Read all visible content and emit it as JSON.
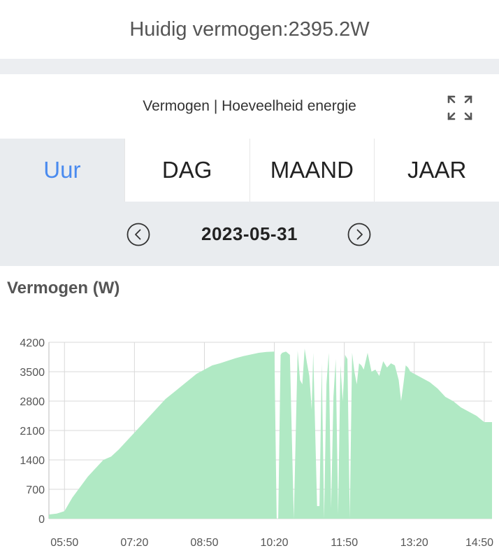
{
  "header": {
    "title": "Huidig vermogen:2395.2W"
  },
  "chart_header": {
    "subtitle": "Vermogen | Hoeveelheid energie",
    "expand_icon": "expand-icon"
  },
  "tabs": [
    {
      "label": "Uur",
      "active": true
    },
    {
      "label": "DAG",
      "active": false
    },
    {
      "label": "MAAND",
      "active": false
    },
    {
      "label": "JAAR",
      "active": false
    }
  ],
  "date_nav": {
    "date": "2023-05-31",
    "prev_icon": "chevron-left-icon",
    "next_icon": "chevron-right-icon"
  },
  "colors": {
    "accent": "#4a8bef",
    "area_fill": "#b0e9c4",
    "grid": "#d9d9d9"
  },
  "chart_data": {
    "type": "area",
    "ylabel": "Vermogen (W)",
    "ylim": [
      0,
      4200
    ],
    "y_ticks": [
      "0",
      "700",
      "1400",
      "2100",
      "2800",
      "3500",
      "4200"
    ],
    "x_ticks": [
      "05:50",
      "07:20",
      "08:50",
      "10:20",
      "11:50",
      "13:20",
      "14:50"
    ],
    "xlim": [
      "05:30",
      "15:00"
    ],
    "grid": true,
    "series": [
      {
        "x": [
          "05:30",
          "05:40",
          "05:50",
          "06:00",
          "06:10",
          "06:20",
          "06:30",
          "06:40",
          "06:50",
          "07:00",
          "07:10",
          "07:20",
          "07:30",
          "07:40",
          "07:50",
          "08:00",
          "08:10",
          "08:20",
          "08:30",
          "08:40",
          "08:50",
          "09:00",
          "09:10",
          "09:20",
          "09:30",
          "09:40",
          "09:50",
          "10:00",
          "10:10",
          "10:20",
          "10:23",
          "10:25",
          "10:28",
          "10:30",
          "10:35",
          "10:40",
          "10:45",
          "10:50",
          "10:53",
          "10:56",
          "10:59",
          "11:02",
          "11:05",
          "11:08",
          "11:10",
          "11:15",
          "11:18",
          "11:21",
          "11:24",
          "11:27",
          "11:30",
          "11:33",
          "11:36",
          "11:39",
          "11:42",
          "11:45",
          "11:48",
          "11:51",
          "11:54",
          "11:57",
          "12:00",
          "12:03",
          "12:06",
          "12:09",
          "12:12",
          "12:15",
          "12:20",
          "12:25",
          "12:30",
          "12:35",
          "12:40",
          "12:45",
          "12:50",
          "12:55",
          "13:00",
          "13:03",
          "13:06",
          "13:09",
          "13:12",
          "13:15",
          "13:20",
          "13:30",
          "13:40",
          "13:50",
          "14:00",
          "14:10",
          "14:20",
          "14:30",
          "14:40",
          "14:50",
          "15:00"
        ],
        "y": [
          100,
          120,
          180,
          500,
          750,
          1000,
          1200,
          1400,
          1480,
          1650,
          1850,
          2050,
          2250,
          2450,
          2650,
          2850,
          3000,
          3150,
          3300,
          3450,
          3550,
          3650,
          3700,
          3760,
          3820,
          3870,
          3910,
          3950,
          3970,
          3980,
          0,
          0,
          3900,
          3950,
          3980,
          3900,
          0,
          4000,
          3300,
          3200,
          4050,
          3700,
          3400,
          2600,
          3950,
          300,
          300,
          3700,
          0,
          3200,
          3950,
          250,
          2900,
          3800,
          100,
          3650,
          2800,
          3900,
          3800,
          0,
          3950,
          3500,
          3200,
          3700,
          3650,
          3550,
          3950,
          3500,
          3550,
          3400,
          3750,
          3600,
          3700,
          3650,
          3300,
          2800,
          3200,
          3650,
          3600,
          3500,
          3450,
          3350,
          3250,
          3100,
          2900,
          2800,
          2650,
          2550,
          2450,
          2300,
          2300
        ]
      }
    ]
  }
}
